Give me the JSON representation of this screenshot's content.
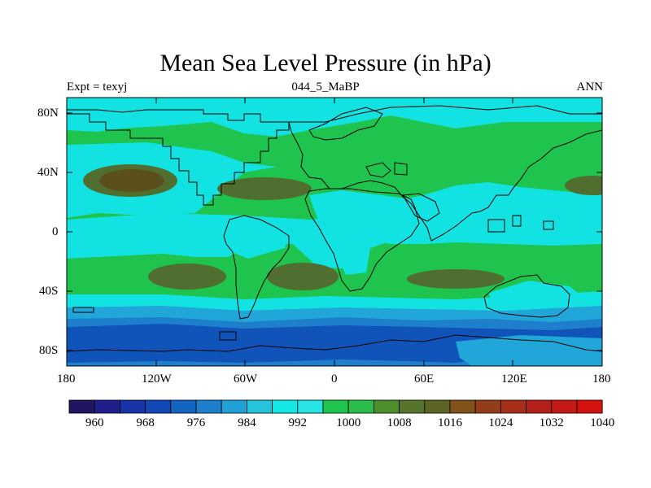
{
  "title": "Mean Sea Level Pressure (in hPa)",
  "subtitle_left": "Expt = texyj",
  "subtitle_center": "044_5_MaBP",
  "subtitle_right": "ANN",
  "lat_labels": [
    "80N",
    "40N",
    "0",
    "40S",
    "80S"
  ],
  "lon_labels": [
    "180",
    "120W",
    "60W",
    "0",
    "60E",
    "120E",
    "180"
  ],
  "colorbar": {
    "colors": [
      "#22145e",
      "#1f1f8c",
      "#1733a8",
      "#1248b5",
      "#1465c2",
      "#1e80cc",
      "#20a0d6",
      "#26c4dc",
      "#13e8e6",
      "#27e4e4",
      "#1ec44e",
      "#2bbd4c",
      "#4d8f2c",
      "#57742b",
      "#5c6526",
      "#815219",
      "#943d1a",
      "#a6301a",
      "#b51f1c",
      "#c51a18",
      "#d4130f"
    ],
    "labels": [
      "960",
      "968",
      "976",
      "984",
      "992",
      "1000",
      "1008",
      "1016",
      "1024",
      "1032",
      "1040"
    ]
  },
  "map_fill": {
    "colors": {
      "low_deep": "#1154b9",
      "low": "#1e80cc",
      "mid_low": "#20a6d8",
      "cyan": "#13e2e2",
      "green": "#1ec44e",
      "olive": "#4f6e2f",
      "high": "#5c4f1e"
    }
  }
}
